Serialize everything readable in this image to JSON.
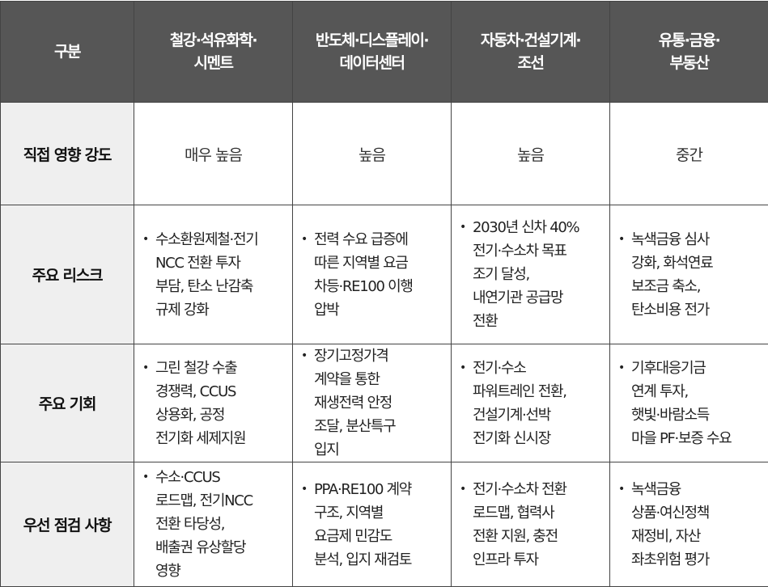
{
  "header": [
    "구분",
    "철강·석유화학·\n시멘트",
    "반도체·디스플레이·\n데이터센터",
    "자동차·건설기계·\n조선",
    "유통·금융·\n부동산"
  ],
  "rows": [
    {
      "label": "직접 영향 강도",
      "cells": [
        "매우 높음",
        "높음",
        "높음",
        "중간"
      ]
    },
    {
      "label": "주요 리스크",
      "cells": [
        "수소환원제철·전기\nNCC 전환 투자\n부담, 탄소 난감축\n규제 강화",
        "전력 수요 급증에\n따른 지역별 요금\n차등·RE100 이행\n압박",
        "2030년 신차 40%\n전기·수소차 목표\n조기 달성,\n내연기관 공급망\n전환",
        "녹색금융 심사\n강화, 화석연료\n보조금 축소,\n탄소비용 전가"
      ]
    },
    {
      "label": "주요 기회",
      "cells": [
        "그린 철강 수출\n경쟁력, CCUS\n상용화, 공정\n전기화 세제지원",
        "장기고정가격\n계약을 통한\n재생전력 안정\n조달, 분산특구\n입지",
        "전기·수소\n파워트레인 전환,\n건설기계·선박\n전기화 신시장",
        "기후대응기금\n연계 투자,\n햇빛·바람소득\n마을 PF·보증 수요"
      ]
    },
    {
      "label": "우선 점검 사항",
      "cells": [
        "수소·CCUS\n로드맵, 전기NCC\n전환 타당성,\n배출권 유상할당\n영향",
        "PPA·RE100 계약\n구조, 지역별\n요금제 민감도\n분석, 입지 재검토",
        "전기·수소차 전환\n로드맵, 협력사\n전환 지원, 충전\n인프라 투자",
        "녹색금융\n상품·여신정책\n재정비, 자산\n좌초위험 평가"
      ]
    }
  ],
  "colors": {
    "header_bg": "#565656",
    "rowhead_bg": "#efefef",
    "border": "#444444"
  }
}
